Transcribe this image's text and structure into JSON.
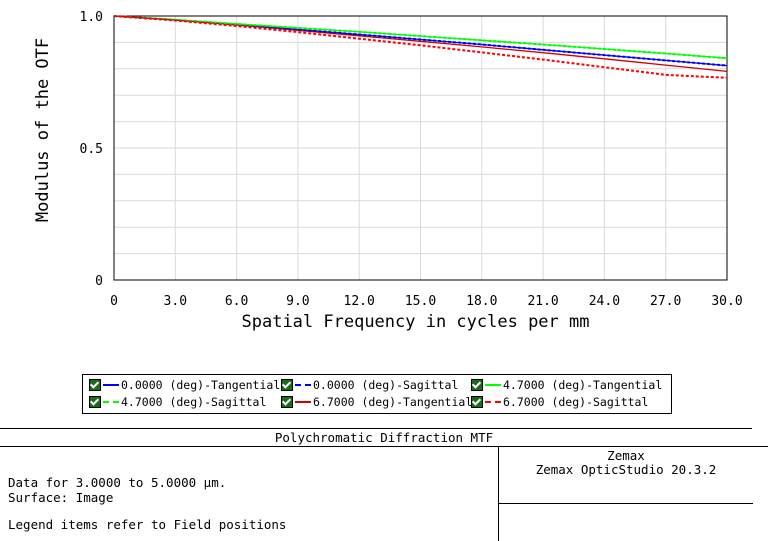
{
  "chart_data": {
    "type": "line",
    "title": "Polychromatic Diffraction MTF",
    "xlabel": "Spatial Frequency in cycles per mm",
    "ylabel": "Modulus of the OTF",
    "xlim": [
      0,
      30
    ],
    "ylim": [
      0,
      1
    ],
    "x_ticks": [
      "0",
      "3.0",
      "6.0",
      "9.0",
      "12.0",
      "15.0",
      "18.0",
      "21.0",
      "24.0",
      "27.0",
      "30.0"
    ],
    "y_ticks": [
      "0",
      "0.5",
      "1.0"
    ],
    "grid": true,
    "x": [
      0,
      3,
      6,
      9,
      12,
      15,
      18,
      21,
      24,
      27,
      30
    ],
    "series": [
      {
        "name": "0.0000 (deg)-Tangential",
        "color": "#0000ff",
        "dash": "solid",
        "values": [
          1.0,
          0.985,
          0.967,
          0.949,
          0.93,
          0.911,
          0.892,
          0.872,
          0.852,
          0.832,
          0.812
        ]
      },
      {
        "name": "0.0000 (deg)-Sagittal",
        "color": "#0000ff",
        "dash": "dashed",
        "values": [
          1.0,
          0.985,
          0.967,
          0.949,
          0.93,
          0.911,
          0.892,
          0.872,
          0.852,
          0.832,
          0.812
        ]
      },
      {
        "name": "4.7000 (deg)-Tangential",
        "color": "#00ff00",
        "dash": "solid",
        "values": [
          1.0,
          0.986,
          0.97,
          0.955,
          0.94,
          0.924,
          0.908,
          0.892,
          0.875,
          0.858,
          0.84
        ]
      },
      {
        "name": "4.7000 (deg)-Sagittal",
        "color": "#00ff00",
        "dash": "dashed",
        "values": [
          1.0,
          0.986,
          0.97,
          0.955,
          0.94,
          0.924,
          0.908,
          0.892,
          0.875,
          0.858,
          0.84
        ]
      },
      {
        "name": "6.7000 (deg)-Tangential",
        "color": "#d00000",
        "dash": "solid",
        "values": [
          1.0,
          0.985,
          0.966,
          0.946,
          0.925,
          0.904,
          0.883,
          0.861,
          0.838,
          0.814,
          0.79
        ]
      },
      {
        "name": "6.7000 (deg)-Sagittal",
        "color": "#ff0000",
        "dash": "dashed",
        "values": [
          1.0,
          0.983,
          0.962,
          0.939,
          0.914,
          0.889,
          0.862,
          0.835,
          0.806,
          0.777,
          0.766
        ]
      }
    ]
  },
  "legend": {
    "items": [
      {
        "label": "0.0000 (deg)-Tangential",
        "color": "#0000ff",
        "dash": "solid"
      },
      {
        "label": "0.0000 (deg)-Sagittal",
        "color": "#0000ff",
        "dash": "dashed"
      },
      {
        "label": "4.7000 (deg)-Tangential",
        "color": "#00ff00",
        "dash": "solid"
      },
      {
        "label": "4.7000 (deg)-Sagittal",
        "color": "#00ff00",
        "dash": "dashed"
      },
      {
        "label": "6.7000 (deg)-Tangential",
        "color": "#d00000",
        "dash": "solid"
      },
      {
        "label": "6.7000 (deg)-Sagittal",
        "color": "#ff0000",
        "dash": "dashed"
      }
    ]
  },
  "info": {
    "title": "Polychromatic Diffraction MTF",
    "data_line": "Data for 3.0000 to 5.0000 µm.",
    "surface_line": "Surface: Image",
    "legend_note": "Legend items refer to Field positions",
    "brand": "Zemax",
    "product": "Zemax OpticStudio 20.3.2"
  }
}
